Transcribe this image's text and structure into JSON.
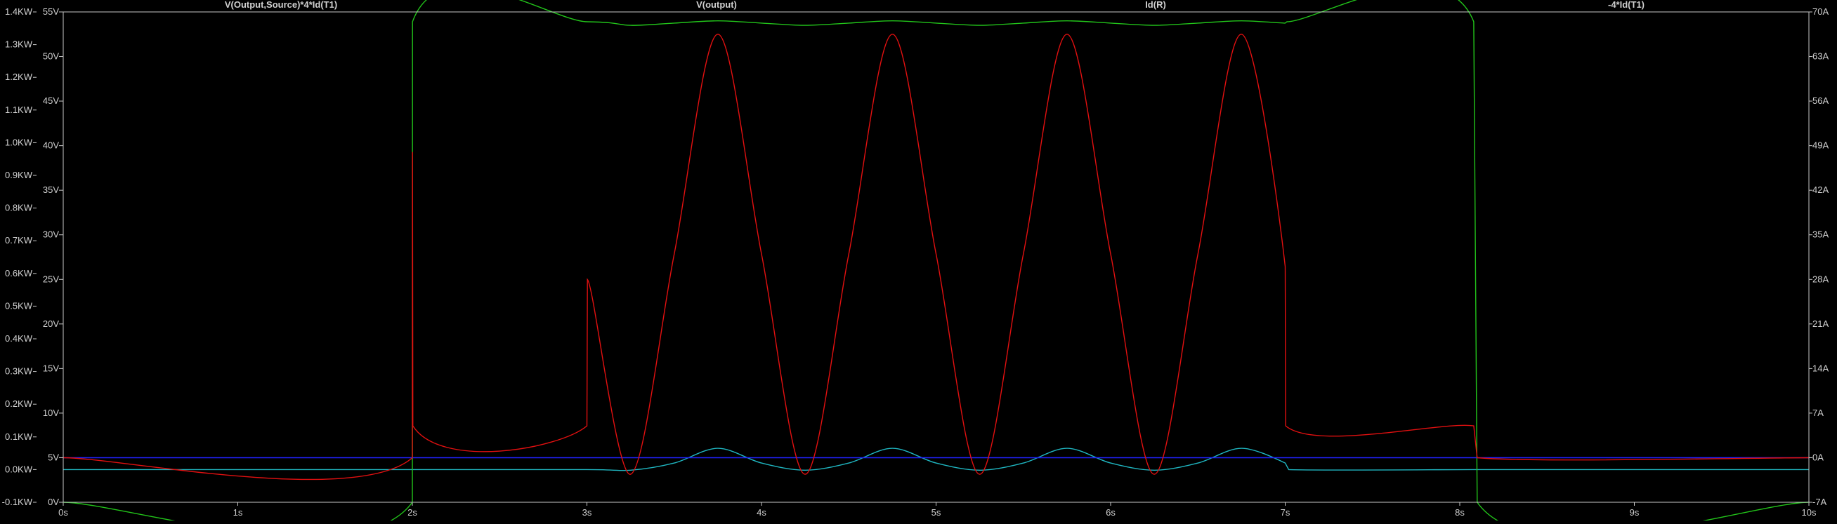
{
  "colors": {
    "background": "#000000",
    "frame": "#c8c8c8",
    "tick_text": "#d0d0d0",
    "cyan": "#1fb6c1",
    "green": "#22c41a",
    "blue": "#2222ff",
    "red": "#e21010"
  },
  "chart_data": {
    "type": "line",
    "legend_placement": "top",
    "grid": false,
    "xlim": [
      0,
      10
    ],
    "x_unit": "s",
    "x_ticks": [
      "0s",
      "1s",
      "2s",
      "3s",
      "4s",
      "5s",
      "6s",
      "7s",
      "8s",
      "9s",
      "10s"
    ],
    "axes": {
      "power_left": {
        "side": "left-outer",
        "lim": [
          -0.1,
          1.4
        ],
        "unit": "KW",
        "ticks": [
          "1.4KW",
          "1.3KW",
          "1.2KW",
          "1.1KW",
          "1.0KW",
          "0.9KW",
          "0.8KW",
          "0.7KW",
          "0.6KW",
          "0.5KW",
          "0.4KW",
          "0.3KW",
          "0.2KW",
          "0.1KW",
          "0.0KW",
          "-0.1KW"
        ]
      },
      "voltage_left": {
        "side": "left-inner",
        "lim": [
          0,
          55
        ],
        "unit": "V",
        "ticks": [
          "55V",
          "50V",
          "45V",
          "40V",
          "35V",
          "30V",
          "25V",
          "20V",
          "15V",
          "10V",
          "5V",
          "0V"
        ]
      },
      "current_right": {
        "side": "right",
        "lim": [
          -7,
          70
        ],
        "unit": "A",
        "ticks": [
          "70A",
          "63A",
          "56A",
          "49A",
          "42A",
          "35A",
          "28A",
          "21A",
          "14A",
          "7A",
          "0A",
          "-7A"
        ]
      }
    },
    "series": [
      {
        "name": "V(Output,Source)*4*Id(T1)",
        "color": "#1fb6c1",
        "axis": "power_left",
        "points": [
          [
            0,
            0
          ],
          [
            2,
            0
          ],
          [
            3,
            0
          ],
          [
            3.25,
            -0.002
          ],
          [
            3.5,
            0.02
          ],
          [
            3.75,
            0.065
          ],
          [
            4,
            0.02
          ],
          [
            4.25,
            -0.002
          ],
          [
            4.5,
            0.02
          ],
          [
            4.75,
            0.065
          ],
          [
            5,
            0.02
          ],
          [
            5.25,
            -0.002
          ],
          [
            5.5,
            0.02
          ],
          [
            5.75,
            0.065
          ],
          [
            6,
            0.02
          ],
          [
            6.25,
            -0.002
          ],
          [
            6.5,
            0.02
          ],
          [
            6.75,
            0.065
          ],
          [
            7,
            0.02
          ],
          [
            7.02,
            0
          ],
          [
            8.08,
            0
          ],
          [
            8.1,
            0
          ],
          [
            10,
            0
          ]
        ]
      },
      {
        "name": "V(output)",
        "color": "#22c41a",
        "axis": "voltage_left",
        "points": [
          [
            0,
            0
          ],
          [
            2,
            0
          ],
          [
            2.001,
            53.9
          ],
          [
            3,
            53.9
          ],
          [
            3.25,
            53.5
          ],
          [
            3.5,
            53.75
          ],
          [
            3.75,
            54
          ],
          [
            4,
            53.75
          ],
          [
            4.25,
            53.5
          ],
          [
            4.5,
            53.75
          ],
          [
            4.75,
            54
          ],
          [
            5,
            53.75
          ],
          [
            5.25,
            53.5
          ],
          [
            5.5,
            53.75
          ],
          [
            5.75,
            54
          ],
          [
            6,
            53.75
          ],
          [
            6.25,
            53.5
          ],
          [
            6.5,
            53.75
          ],
          [
            6.75,
            54
          ],
          [
            7,
            53.75
          ],
          [
            7.01,
            53.9
          ],
          [
            8.08,
            53.9
          ],
          [
            8.1,
            0
          ],
          [
            10,
            0
          ]
        ]
      },
      {
        "name": "Id(R)",
        "color": "#2222ff",
        "axis": "current_right",
        "points": [
          [
            0,
            0
          ],
          [
            10,
            0
          ]
        ]
      },
      {
        "name": "-4*Id(T1)",
        "color": "#e21010",
        "axis": "current_right",
        "points": [
          [
            0,
            0
          ],
          [
            2,
            0
          ],
          [
            2.001,
            48
          ],
          [
            2.003,
            5
          ],
          [
            3,
            5
          ],
          [
            3.003,
            28
          ],
          [
            3.25,
            -2.6
          ],
          [
            3.5,
            32
          ],
          [
            3.75,
            66.5
          ],
          [
            4,
            32
          ],
          [
            4.25,
            -2.6
          ],
          [
            4.5,
            32
          ],
          [
            4.75,
            66.5
          ],
          [
            5,
            32
          ],
          [
            5.25,
            -2.6
          ],
          [
            5.5,
            32
          ],
          [
            5.75,
            66.5
          ],
          [
            6,
            32
          ],
          [
            6.25,
            -2.6
          ],
          [
            6.5,
            32
          ],
          [
            6.75,
            66.5
          ],
          [
            7,
            30
          ],
          [
            7.003,
            5
          ],
          [
            8.08,
            5
          ],
          [
            8.1,
            0
          ],
          [
            10,
            0
          ]
        ]
      }
    ]
  }
}
